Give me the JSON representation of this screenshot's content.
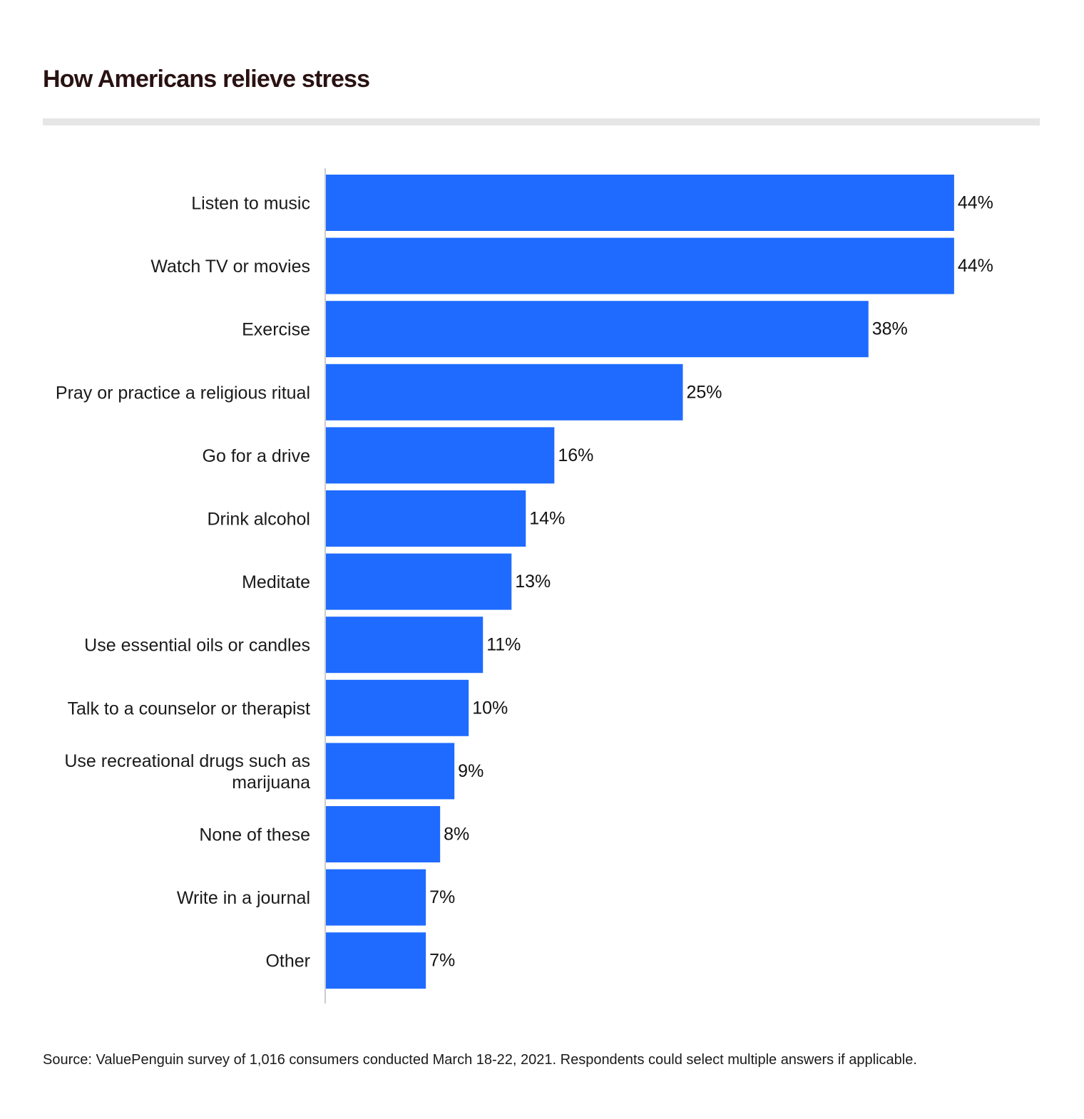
{
  "title": "How Americans relieve stress",
  "source": "Source: ValuePenguin survey of 1,016 consumers conducted March 18-22, 2021. Respondents could select multiple answers if applicable.",
  "colors": {
    "bar": "#1f6bff",
    "axis": "#cccccc",
    "rule": "#e6e6e6",
    "title": "#2a1212"
  },
  "chart_data": {
    "type": "bar",
    "orientation": "horizontal",
    "categories": [
      "Listen to music",
      "Watch TV or movies",
      "Exercise",
      "Pray or practice a religious ritual",
      "Go for a drive",
      "Drink alcohol",
      "Meditate",
      "Use essential oils or candles",
      "Talk to a counselor or therapist",
      "Use recreational drugs such as marijuana",
      "None of these",
      "Write in a journal",
      "Other"
    ],
    "values": [
      44,
      44,
      38,
      25,
      16,
      14,
      13,
      11,
      10,
      9,
      8,
      7,
      7
    ],
    "value_labels": [
      "44%",
      "44%",
      "38%",
      "25%",
      "16%",
      "14%",
      "13%",
      "11%",
      "10%",
      "9%",
      "8%",
      "7%",
      "7%"
    ],
    "unit": "%",
    "xlim": [
      0,
      44
    ],
    "grid": false,
    "legend": "none"
  }
}
